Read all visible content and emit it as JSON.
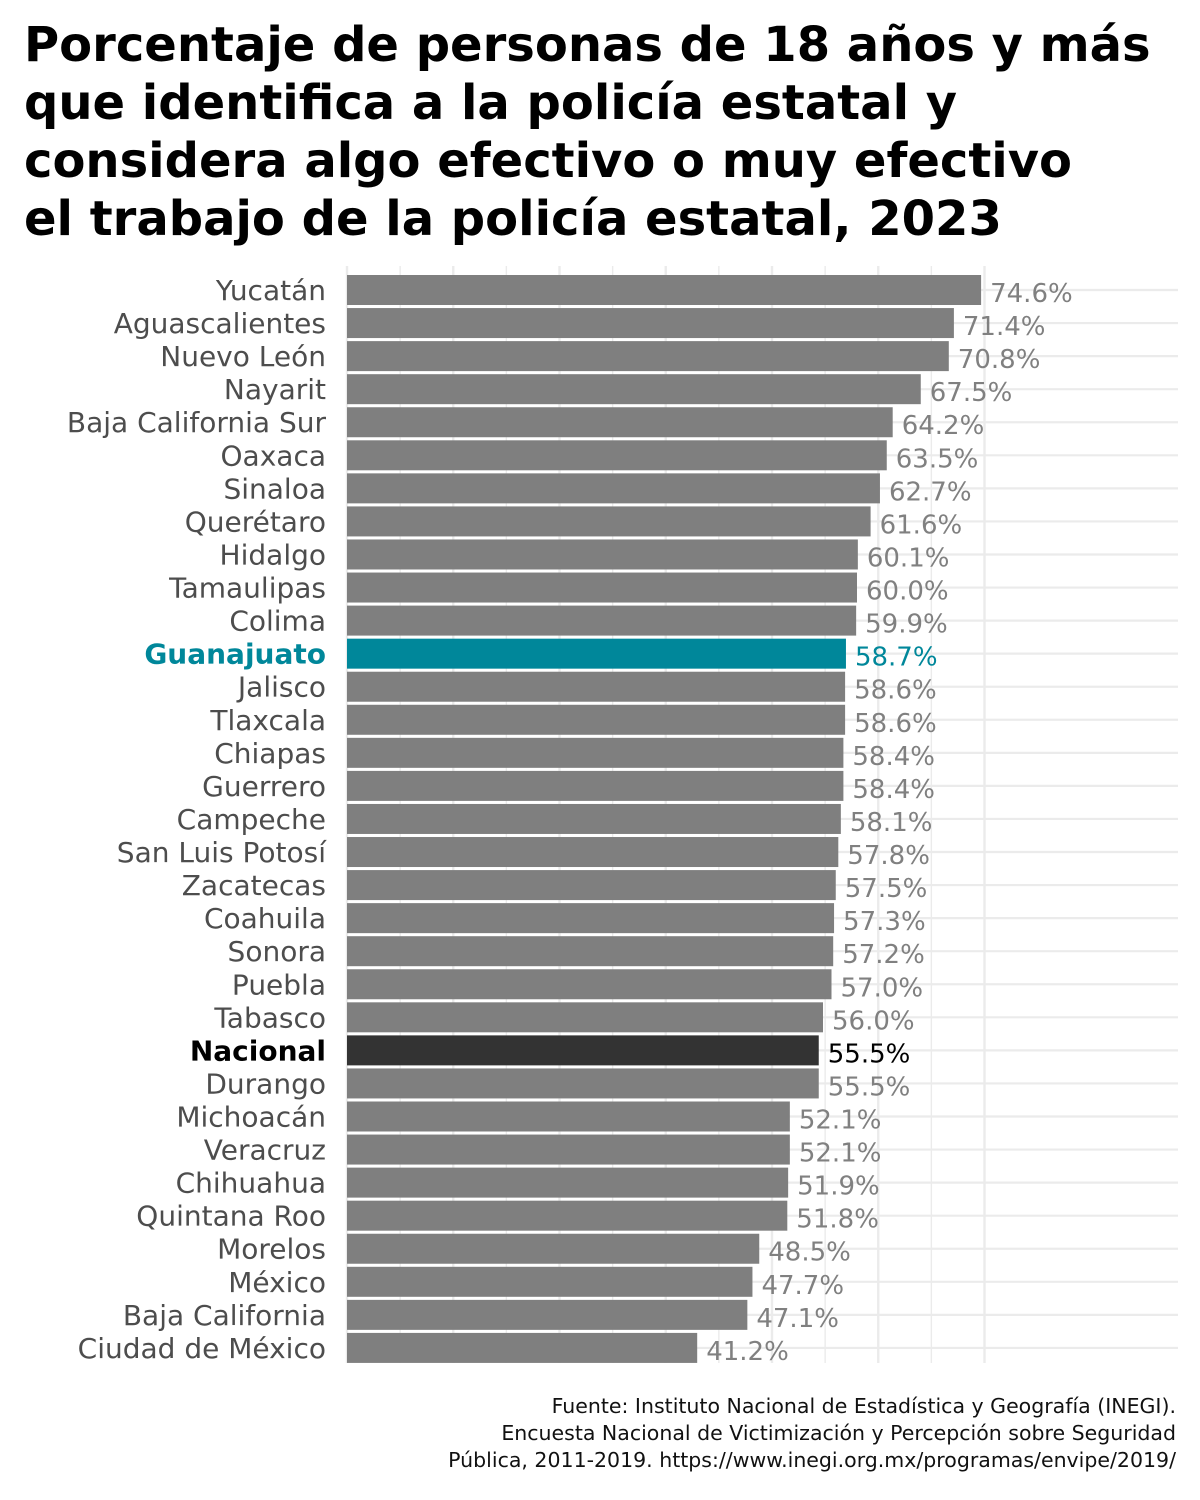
{
  "title_lines": [
    "Porcentaje de personas de 18 años y más",
    "que identifica a la policía estatal y",
    "considera algo efectivo o muy efectivo",
    "el trabajo de la policía estatal, 2023"
  ],
  "chart_data": {
    "type": "bar",
    "orientation": "horizontal",
    "title": "Porcentaje de personas de 18 años y más que identifica a la policía estatal y considera algo efectivo o muy efectivo el trabajo de la policía estatal, 2023",
    "xlabel": "",
    "ylabel": "",
    "xlim": [
      0,
      78
    ],
    "grid": true,
    "x_axis_ticks_visible": false,
    "categories": [
      "Yucatán",
      "Aguascalientes",
      "Nuevo León",
      "Nayarit",
      "Baja California Sur",
      "Oaxaca",
      "Sinaloa",
      "Querétaro",
      "Hidalgo",
      "Tamaulipas",
      "Colima",
      "Guanajuato",
      "Jalisco",
      "Tlaxcala",
      "Chiapas",
      "Guerrero",
      "Campeche",
      "San Luis Potosí",
      "Zacatecas",
      "Coahuila",
      "Sonora",
      "Puebla",
      "Tabasco",
      "Nacional",
      "Durango",
      "Michoacán",
      "Veracruz",
      "Chihuahua",
      "Quintana Roo",
      "Morelos",
      "México",
      "Baja California",
      "Ciudad de México"
    ],
    "values": [
      74.6,
      71.4,
      70.8,
      67.5,
      64.2,
      63.5,
      62.7,
      61.6,
      60.1,
      60.0,
      59.9,
      58.7,
      58.6,
      58.6,
      58.4,
      58.4,
      58.1,
      57.8,
      57.5,
      57.3,
      57.2,
      57.0,
      56.0,
      55.5,
      55.5,
      52.1,
      52.1,
      51.9,
      51.8,
      48.5,
      47.7,
      47.1,
      41.2
    ],
    "value_labels": [
      "74.6%",
      "71.4%",
      "70.8%",
      "67.5%",
      "64.2%",
      "63.5%",
      "62.7%",
      "61.6%",
      "60.1%",
      "60.0%",
      "59.9%",
      "58.7%",
      "58.6%",
      "58.6%",
      "58.4%",
      "58.4%",
      "58.1%",
      "57.8%",
      "57.5%",
      "57.3%",
      "57.2%",
      "57.0%",
      "56.0%",
      "55.5%",
      "55.5%",
      "52.1%",
      "52.1%",
      "51.9%",
      "51.8%",
      "48.5%",
      "47.7%",
      "47.1%",
      "41.2%"
    ],
    "highlights": {
      "Guanajuato": {
        "bar": "#00879a",
        "label": "#00879a",
        "bold": true
      },
      "Nacional": {
        "bar": "#333333",
        "label": "#000000",
        "bold": true
      }
    },
    "colors": {
      "bar_default": "#7f7f7f",
      "category_label": "#4d4d4d",
      "value_label": "#808080",
      "grid": "#ebebeb"
    }
  },
  "source_lines": [
    "Fuente: Instituto Nacional de Estadística y Geografía (INEGI).",
    "Encuesta Nacional de Victimización y Percepción sobre Seguridad",
    "Pública, 2011-2019. https://www.inegi.org.mx/programas/envipe/2019/"
  ]
}
